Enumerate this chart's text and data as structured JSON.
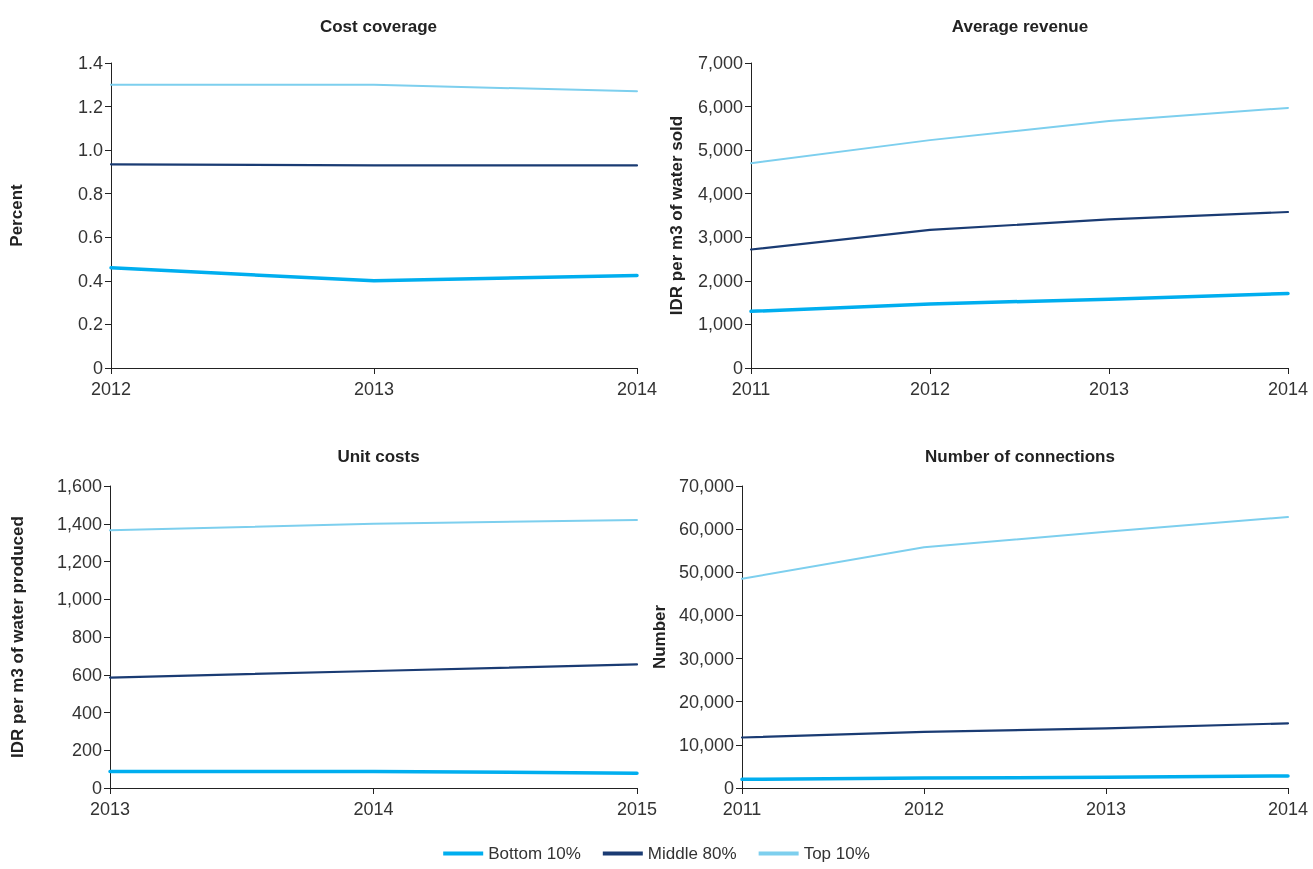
{
  "chart_data": [
    {
      "type": "line",
      "title": "Cost coverage",
      "ylabel": "Percent",
      "categories": [
        "2012",
        "2013",
        "2014"
      ],
      "ylim": [
        0,
        1.4
      ],
      "yticks": [
        0,
        0.2,
        0.4,
        0.6,
        0.8,
        {
          "value": 1,
          "label": "1.0"
        },
        1.2,
        1.4
      ],
      "grid": false,
      "legend": false,
      "series": [
        {
          "color": "#00aeef",
          "values": [
            0.46,
            0.4,
            0.425
          ]
        },
        {
          "color": "#1a3b73",
          "values": [
            0.935,
            0.93,
            0.93
          ]
        },
        {
          "color": "#7dcfee",
          "values": [
            1.3,
            1.3,
            1.27
          ]
        }
      ]
    },
    {
      "type": "line",
      "title": "Average revenue",
      "ylabel": "IDR per m3 of water sold",
      "categories": [
        "2011",
        "2012",
        "2013",
        "2014"
      ],
      "ylim": [
        0,
        7000
      ],
      "yticks": [
        0,
        {
          "value": 1000,
          "label": "1,000"
        },
        {
          "value": 2000,
          "label": "2,000"
        },
        {
          "value": 3000,
          "label": "3,000"
        },
        {
          "value": 4000,
          "label": "4,000"
        },
        {
          "value": 5000,
          "label": "5,000"
        },
        {
          "value": 6000,
          "label": "6,000"
        },
        {
          "value": 7000,
          "label": "7,000"
        }
      ],
      "grid": false,
      "legend": false,
      "series": [
        {
          "color": "#00aeef",
          "values": [
            1300,
            1470,
            1580,
            1710
          ]
        },
        {
          "color": "#1a3b73",
          "values": [
            2720,
            3170,
            3410,
            3580
          ]
        },
        {
          "color": "#7dcfee",
          "values": [
            4700,
            5230,
            5670,
            5970
          ]
        }
      ]
    },
    {
      "type": "line",
      "title": "Unit costs",
      "ylabel": "IDR per m3 of water produced",
      "categories": [
        "2013",
        "2014",
        "2015"
      ],
      "ylim": [
        0,
        1600
      ],
      "yticks": [
        0,
        200,
        400,
        600,
        800,
        {
          "value": 1000,
          "label": "1,000"
        },
        {
          "value": 1200,
          "label": "1,200"
        },
        {
          "value": 1400,
          "label": "1,400"
        },
        {
          "value": 1600,
          "label": "1,600"
        }
      ],
      "grid": false,
      "legend": false,
      "series": [
        {
          "color": "#00aeef",
          "values": [
            88,
            88,
            78
          ]
        },
        {
          "color": "#1a3b73",
          "values": [
            585,
            620,
            655
          ]
        },
        {
          "color": "#7dcfee",
          "values": [
            1365,
            1400,
            1420
          ]
        }
      ]
    },
    {
      "type": "line",
      "title": "Number of connections",
      "ylabel": "Number",
      "categories": [
        "2011",
        "2012",
        "2013",
        "2014"
      ],
      "ylim": [
        0,
        70000
      ],
      "yticks": [
        0,
        {
          "value": 10000,
          "label": "10,000"
        },
        {
          "value": 20000,
          "label": "20,000"
        },
        {
          "value": 30000,
          "label": "30,000"
        },
        {
          "value": 40000,
          "label": "40,000"
        },
        {
          "value": 50000,
          "label": "50,000"
        },
        {
          "value": 60000,
          "label": "60,000"
        },
        {
          "value": 70000,
          "label": "70,000"
        }
      ],
      "grid": false,
      "legend": "bottom",
      "series": [
        {
          "name": "Bottom 10%",
          "color": "#00aeef",
          "values": [
            2000,
            2300,
            2500,
            2800
          ]
        },
        {
          "name": "Middle 80%",
          "color": "#1a3b73",
          "values": [
            11700,
            13000,
            13800,
            15000
          ]
        },
        {
          "name": "Top 10%",
          "color": "#7dcfee",
          "values": [
            48500,
            55800,
            59400,
            62800
          ]
        }
      ]
    }
  ]
}
